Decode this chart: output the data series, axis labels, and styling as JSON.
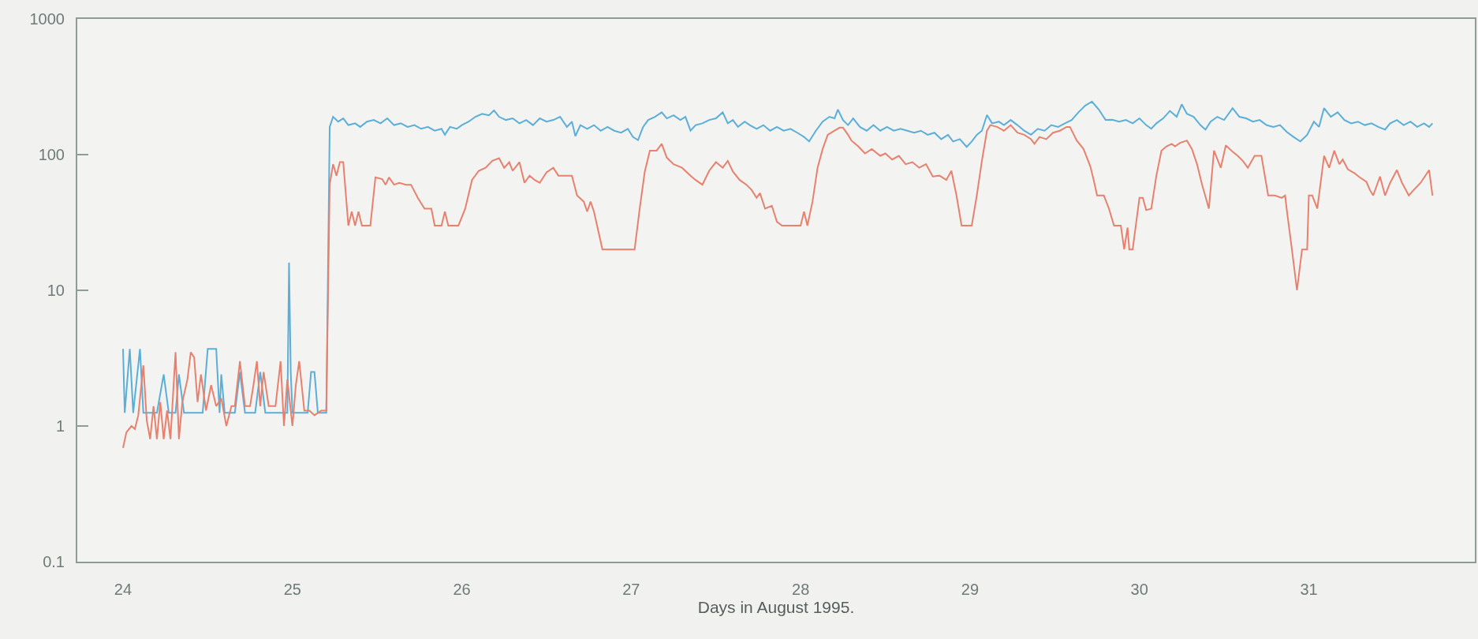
{
  "chart_data": {
    "type": "line",
    "xlabel": "Days in August 1995.",
    "xlim": [
      23.73,
      31.98
    ],
    "ylim": [
      0.1,
      1000
    ],
    "xticks": [
      24,
      25,
      26,
      27,
      28,
      29,
      30,
      31
    ],
    "yticks": [
      0.1,
      1,
      10,
      100,
      1000
    ],
    "log": true,
    "series": [
      {
        "color": "#5aaed8",
        "x": [
          24.0,
          24.01,
          24.04,
          24.06,
          24.1,
          24.12,
          24.2,
          24.24,
          24.27,
          24.31,
          24.33,
          24.36,
          24.47,
          24.5,
          24.55,
          24.57,
          24.58,
          24.6,
          24.66,
          24.69,
          24.72,
          24.78,
          24.81,
          24.84,
          24.97,
          24.98,
          24.99,
          25.0,
          25.09,
          25.11,
          25.13,
          25.15,
          25.2,
          25.22,
          25.24,
          25.27,
          25.3,
          25.33,
          25.37,
          25.4,
          25.44,
          25.48,
          25.52,
          25.56,
          25.6,
          25.64,
          25.68,
          25.72,
          25.76,
          25.8,
          25.84,
          25.88,
          25.9,
          25.93,
          25.97,
          26.0,
          26.04,
          26.08,
          26.12,
          26.16,
          26.19,
          26.22,
          26.26,
          26.3,
          26.34,
          26.38,
          26.42,
          26.46,
          26.5,
          26.54,
          26.58,
          26.62,
          26.65,
          26.67,
          26.7,
          26.74,
          26.78,
          26.82,
          26.86,
          26.9,
          26.94,
          26.98,
          27.01,
          27.04,
          27.07,
          27.1,
          27.14,
          27.18,
          27.21,
          27.25,
          27.29,
          27.32,
          27.35,
          27.38,
          27.42,
          27.46,
          27.5,
          27.54,
          27.57,
          27.6,
          27.63,
          27.67,
          27.7,
          27.74,
          27.78,
          27.82,
          27.86,
          27.9,
          27.94,
          27.98,
          28.02,
          28.05,
          28.09,
          28.13,
          28.17,
          28.2,
          28.22,
          28.25,
          28.28,
          28.31,
          28.35,
          28.39,
          28.43,
          28.47,
          28.51,
          28.55,
          28.59,
          28.63,
          28.67,
          28.71,
          28.75,
          28.79,
          28.83,
          28.87,
          28.9,
          28.94,
          28.98,
          29.01,
          29.04,
          29.07,
          29.1,
          29.13,
          29.17,
          29.2,
          29.24,
          29.28,
          29.32,
          29.36,
          29.4,
          29.44,
          29.48,
          29.52,
          29.56,
          29.6,
          29.64,
          29.68,
          29.72,
          29.76,
          29.8,
          29.84,
          29.88,
          29.92,
          29.96,
          30.0,
          30.04,
          30.07,
          30.1,
          30.14,
          30.18,
          30.22,
          30.25,
          30.28,
          30.32,
          30.36,
          30.39,
          30.42,
          30.46,
          30.5,
          30.55,
          30.59,
          30.63,
          30.67,
          30.71,
          30.75,
          30.79,
          30.83,
          30.87,
          30.91,
          30.95,
          30.99,
          31.03,
          31.06,
          31.09,
          31.13,
          31.17,
          31.21,
          31.25,
          31.29,
          31.33,
          31.37,
          31.41,
          31.45,
          31.48,
          31.52,
          31.56,
          31.6,
          31.64,
          31.68,
          31.71,
          31.73
        ],
        "values": [
          3.7,
          1.25,
          3.7,
          1.25,
          3.7,
          1.25,
          1.25,
          2.4,
          1.25,
          1.25,
          2.4,
          1.25,
          1.25,
          3.7,
          3.7,
          1.25,
          2.4,
          1.25,
          1.25,
          2.5,
          1.25,
          1.25,
          2.5,
          1.25,
          1.25,
          16,
          2.5,
          1.25,
          1.25,
          2.5,
          2.5,
          1.25,
          1.25,
          160,
          190,
          175,
          185,
          165,
          170,
          160,
          175,
          180,
          170,
          185,
          165,
          170,
          160,
          165,
          155,
          160,
          150,
          155,
          140,
          160,
          155,
          165,
          175,
          190,
          200,
          195,
          212,
          190,
          180,
          185,
          170,
          180,
          165,
          185,
          175,
          180,
          190,
          160,
          175,
          137,
          165,
          155,
          165,
          150,
          160,
          150,
          145,
          155,
          135,
          128,
          160,
          180,
          190,
          205,
          185,
          195,
          180,
          190,
          150,
          165,
          170,
          180,
          185,
          205,
          170,
          180,
          160,
          175,
          165,
          155,
          165,
          150,
          160,
          150,
          155,
          145,
          135,
          125,
          150,
          175,
          190,
          185,
          215,
          180,
          165,
          185,
          160,
          150,
          165,
          150,
          160,
          150,
          155,
          150,
          145,
          150,
          140,
          145,
          130,
          140,
          125,
          130,
          114,
          125,
          140,
          150,
          196,
          170,
          175,
          165,
          180,
          165,
          150,
          140,
          155,
          150,
          165,
          160,
          170,
          180,
          205,
          230,
          246,
          215,
          180,
          181,
          175,
          180,
          170,
          185,
          165,
          155,
          170,
          185,
          210,
          190,
          235,
          200,
          190,
          165,
          153,
          175,
          190,
          180,
          220,
          190,
          185,
          175,
          180,
          165,
          160,
          165,
          147,
          135,
          125,
          140,
          175,
          160,
          220,
          190,
          205,
          180,
          170,
          175,
          165,
          170,
          160,
          153,
          170,
          180,
          165,
          175,
          160,
          170,
          160,
          170
        ]
      },
      {
        "color": "#e8806e",
        "x": [
          24.0,
          24.02,
          24.05,
          24.07,
          24.09,
          24.12,
          24.14,
          24.16,
          24.18,
          24.2,
          24.22,
          24.24,
          24.26,
          24.28,
          24.31,
          24.33,
          24.35,
          24.38,
          24.4,
          24.42,
          24.44,
          24.46,
          24.49,
          24.52,
          24.55,
          24.58,
          24.61,
          24.64,
          24.66,
          24.69,
          24.72,
          24.75,
          24.77,
          24.79,
          24.81,
          24.83,
          24.86,
          24.9,
          24.93,
          24.95,
          24.97,
          25.0,
          25.02,
          25.04,
          25.07,
          25.1,
          25.13,
          25.17,
          25.2,
          25.22,
          25.24,
          25.26,
          25.28,
          25.3,
          25.33,
          25.35,
          25.37,
          25.39,
          25.41,
          25.46,
          25.49,
          25.53,
          25.55,
          25.57,
          25.6,
          25.63,
          25.67,
          25.7,
          25.74,
          25.78,
          25.82,
          25.84,
          25.88,
          25.9,
          25.92,
          25.98,
          26.02,
          26.06,
          26.1,
          26.14,
          26.18,
          26.22,
          26.25,
          26.28,
          26.3,
          26.34,
          26.37,
          26.4,
          26.43,
          26.46,
          26.5,
          26.54,
          26.57,
          26.6,
          26.65,
          26.68,
          26.72,
          26.74,
          26.76,
          26.78,
          26.83,
          27.02,
          27.05,
          27.08,
          27.11,
          27.15,
          27.18,
          27.21,
          27.25,
          27.3,
          27.35,
          27.38,
          27.42,
          27.46,
          27.5,
          27.54,
          27.57,
          27.6,
          27.64,
          27.68,
          27.71,
          27.74,
          27.76,
          27.79,
          27.83,
          27.86,
          27.89,
          28.0,
          28.02,
          28.04,
          28.07,
          28.1,
          28.13,
          28.16,
          28.2,
          28.23,
          28.25,
          28.28,
          28.3,
          28.34,
          28.38,
          28.42,
          28.47,
          28.5,
          28.54,
          28.58,
          28.62,
          28.66,
          28.7,
          28.74,
          28.78,
          28.82,
          28.86,
          28.89,
          28.92,
          28.95,
          29.01,
          29.04,
          29.07,
          29.1,
          29.12,
          29.16,
          29.2,
          29.24,
          29.28,
          29.32,
          29.36,
          29.38,
          29.41,
          29.45,
          29.49,
          29.53,
          29.57,
          29.59,
          29.63,
          29.67,
          29.71,
          29.73,
          29.75,
          29.79,
          29.82,
          29.85,
          29.89,
          29.91,
          29.93,
          29.94,
          29.96,
          30.0,
          30.02,
          30.04,
          30.07,
          30.1,
          30.13,
          30.16,
          30.19,
          30.21,
          30.24,
          30.28,
          30.31,
          30.34,
          30.37,
          30.41,
          30.44,
          30.48,
          30.51,
          30.55,
          30.58,
          30.61,
          30.64,
          30.68,
          30.72,
          30.76,
          30.8,
          30.84,
          30.86,
          30.87,
          30.9,
          30.93,
          30.96,
          30.99,
          31.0,
          31.02,
          31.05,
          31.09,
          31.12,
          31.15,
          31.18,
          31.2,
          31.23,
          31.27,
          31.3,
          31.34,
          31.36,
          31.38,
          31.42,
          31.45,
          31.48,
          31.52,
          31.55,
          31.59,
          31.62,
          31.66,
          31.71,
          31.73
        ],
        "values": [
          0.69,
          0.9,
          1.0,
          0.95,
          1.2,
          2.8,
          1.1,
          0.8,
          1.4,
          0.8,
          1.5,
          0.8,
          1.3,
          0.8,
          3.5,
          0.8,
          1.5,
          2.2,
          3.5,
          3.2,
          1.5,
          2.4,
          1.3,
          2.0,
          1.4,
          1.6,
          1.0,
          1.4,
          1.4,
          3.0,
          1.4,
          1.4,
          2.0,
          3.0,
          1.4,
          2.5,
          1.4,
          1.4,
          3.0,
          1.0,
          2.2,
          1.0,
          2.0,
          3.0,
          1.3,
          1.3,
          1.2,
          1.3,
          1.3,
          60,
          85,
          70,
          88,
          88,
          30,
          38,
          30,
          38,
          30,
          30,
          68,
          66,
          60,
          68,
          60,
          62,
          60,
          60,
          48,
          40,
          40,
          30,
          30,
          38,
          30,
          30,
          40,
          65,
          76,
          80,
          90,
          94,
          80,
          88,
          76,
          88,
          62,
          70,
          65,
          62,
          74,
          80,
          70,
          70,
          70,
          50,
          45,
          38,
          45,
          38,
          20,
          20,
          40,
          75,
          107,
          107,
          120,
          95,
          85,
          80,
          70,
          65,
          60,
          76,
          88,
          80,
          90,
          75,
          65,
          60,
          55,
          48,
          52,
          40,
          42,
          32,
          30,
          30,
          38,
          30,
          45,
          80,
          110,
          140,
          150,
          158,
          158,
          140,
          127,
          115,
          102,
          110,
          98,
          102,
          92,
          98,
          85,
          88,
          80,
          85,
          69,
          70,
          65,
          76,
          50,
          30,
          30,
          50,
          90,
          150,
          165,
          160,
          150,
          165,
          145,
          140,
          130,
          120,
          135,
          130,
          145,
          150,
          160,
          160,
          127,
          110,
          82,
          65,
          50,
          50,
          40,
          30,
          30,
          20,
          29,
          20,
          20,
          48,
          48,
          39,
          40,
          70,
          107,
          115,
          120,
          115,
          122,
          127,
          110,
          85,
          60,
          40,
          107,
          80,
          117,
          105,
          98,
          90,
          80,
          98,
          98,
          50,
          50,
          48,
          50,
          39,
          20,
          10,
          20,
          20,
          50,
          50,
          40,
          98,
          80,
          107,
          85,
          92,
          78,
          73,
          68,
          63,
          55,
          50,
          69,
          50,
          62,
          77,
          62,
          50,
          55,
          62,
          77,
          50
        ]
      }
    ]
  }
}
